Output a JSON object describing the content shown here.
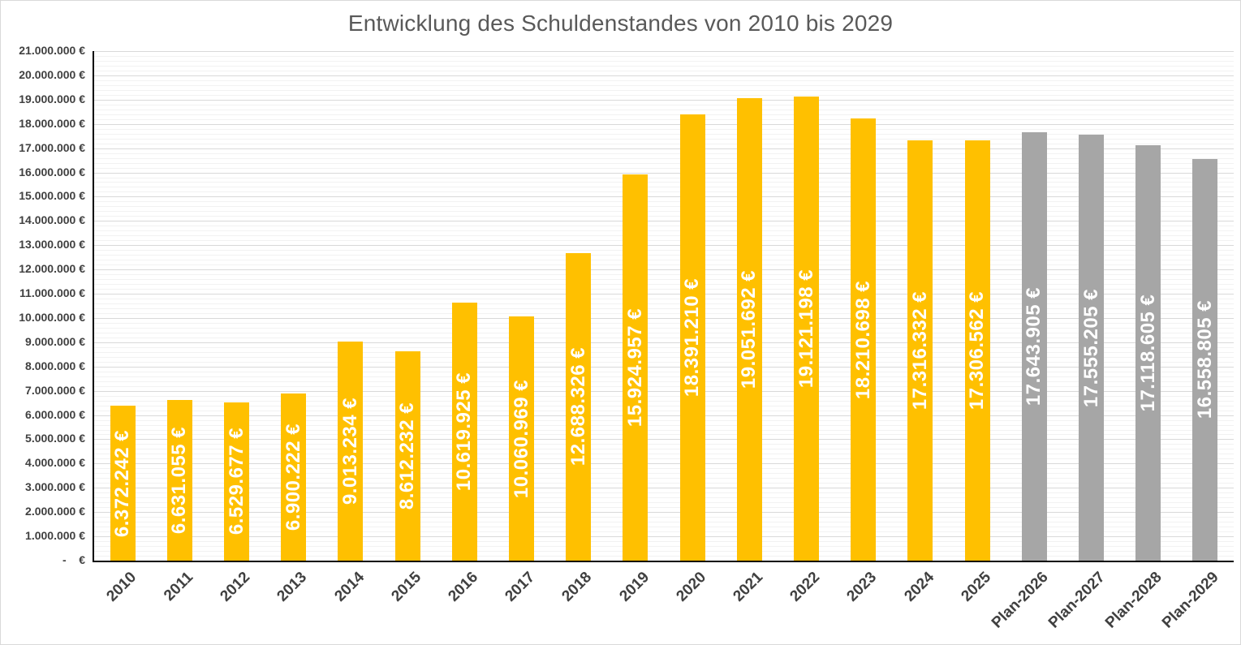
{
  "chart": {
    "title": "Entwicklung des Schuldenstandes von 2010 bis 2029"
  },
  "colors": {
    "actual_bar": "#FFC000",
    "plan_bar": "#A6A6A6",
    "bar_label_text": "#FFFFFF",
    "axis_line": "#000000",
    "major_gridline": "#D9D9D9",
    "minor_gridline": "#F2F2F2",
    "tick_label_text": "#404040",
    "title_text": "#595959",
    "chart_border": "#D9D9D9"
  },
  "chart_data": {
    "type": "bar",
    "title": "Entwicklung des Schuldenstandes von 2010 bis 2029",
    "categories": [
      "2010",
      "2011",
      "2012",
      "2013",
      "2014",
      "2015",
      "2016",
      "2017",
      "2018",
      "2019",
      "2020",
      "2021",
      "2022",
      "2023",
      "2024",
      "2025",
      "Plan-2026",
      "Plan-2027",
      "Plan-2028",
      "Plan-2029"
    ],
    "series": [
      {
        "name": "Schuldenstand",
        "values": [
          6372242,
          6631055,
          6529677,
          6900222,
          9013234,
          8612232,
          10619925,
          10060969,
          12688326,
          15924957,
          18391210,
          19051692,
          19121198,
          18210698,
          17316332,
          17306562,
          17643905,
          17555205,
          17118605,
          16558805
        ]
      }
    ],
    "value_labels": [
      "6.372.242 €",
      "6.631.055 €",
      "6.529.677 €",
      "6.900.222 €",
      "9.013.234 €",
      "8.612.232 €",
      "10.619.925 €",
      "10.060.969 €",
      "12.688.326 €",
      "15.924.957 €",
      "18.391.210 €",
      "19.051.692 €",
      "19.121.198 €",
      "18.210.698 €",
      "17.316.332 €",
      "17.306.562 €",
      "17.643.905 €",
      "17.555.205 €",
      "17.118.605 €",
      "16.558.805 €"
    ],
    "plan_from_index": 16,
    "ylim": [
      0,
      21000000
    ],
    "y_major_interval": 1000000,
    "y_minor_interval": 200000,
    "y_tick_labels": [
      "-    €",
      "1.000.000 €",
      "2.000.000 €",
      "3.000.000 €",
      "4.000.000 €",
      "5.000.000 €",
      "6.000.000 €",
      "7.000.000 €",
      "8.000.000 €",
      "9.000.000 €",
      "10.000.000 €",
      "11.000.000 €",
      "12.000.000 €",
      "13.000.000 €",
      "14.000.000 €",
      "15.000.000 €",
      "16.000.000 €",
      "17.000.000 €",
      "18.000.000 €",
      "19.000.000 €",
      "20.000.000 €",
      "21.000.000 €"
    ],
    "x_tick_rotation": 45,
    "bar_label_rotation": "vertical-bottom-to-top",
    "grid": "horizontal major and minor, on",
    "legend": "none"
  }
}
